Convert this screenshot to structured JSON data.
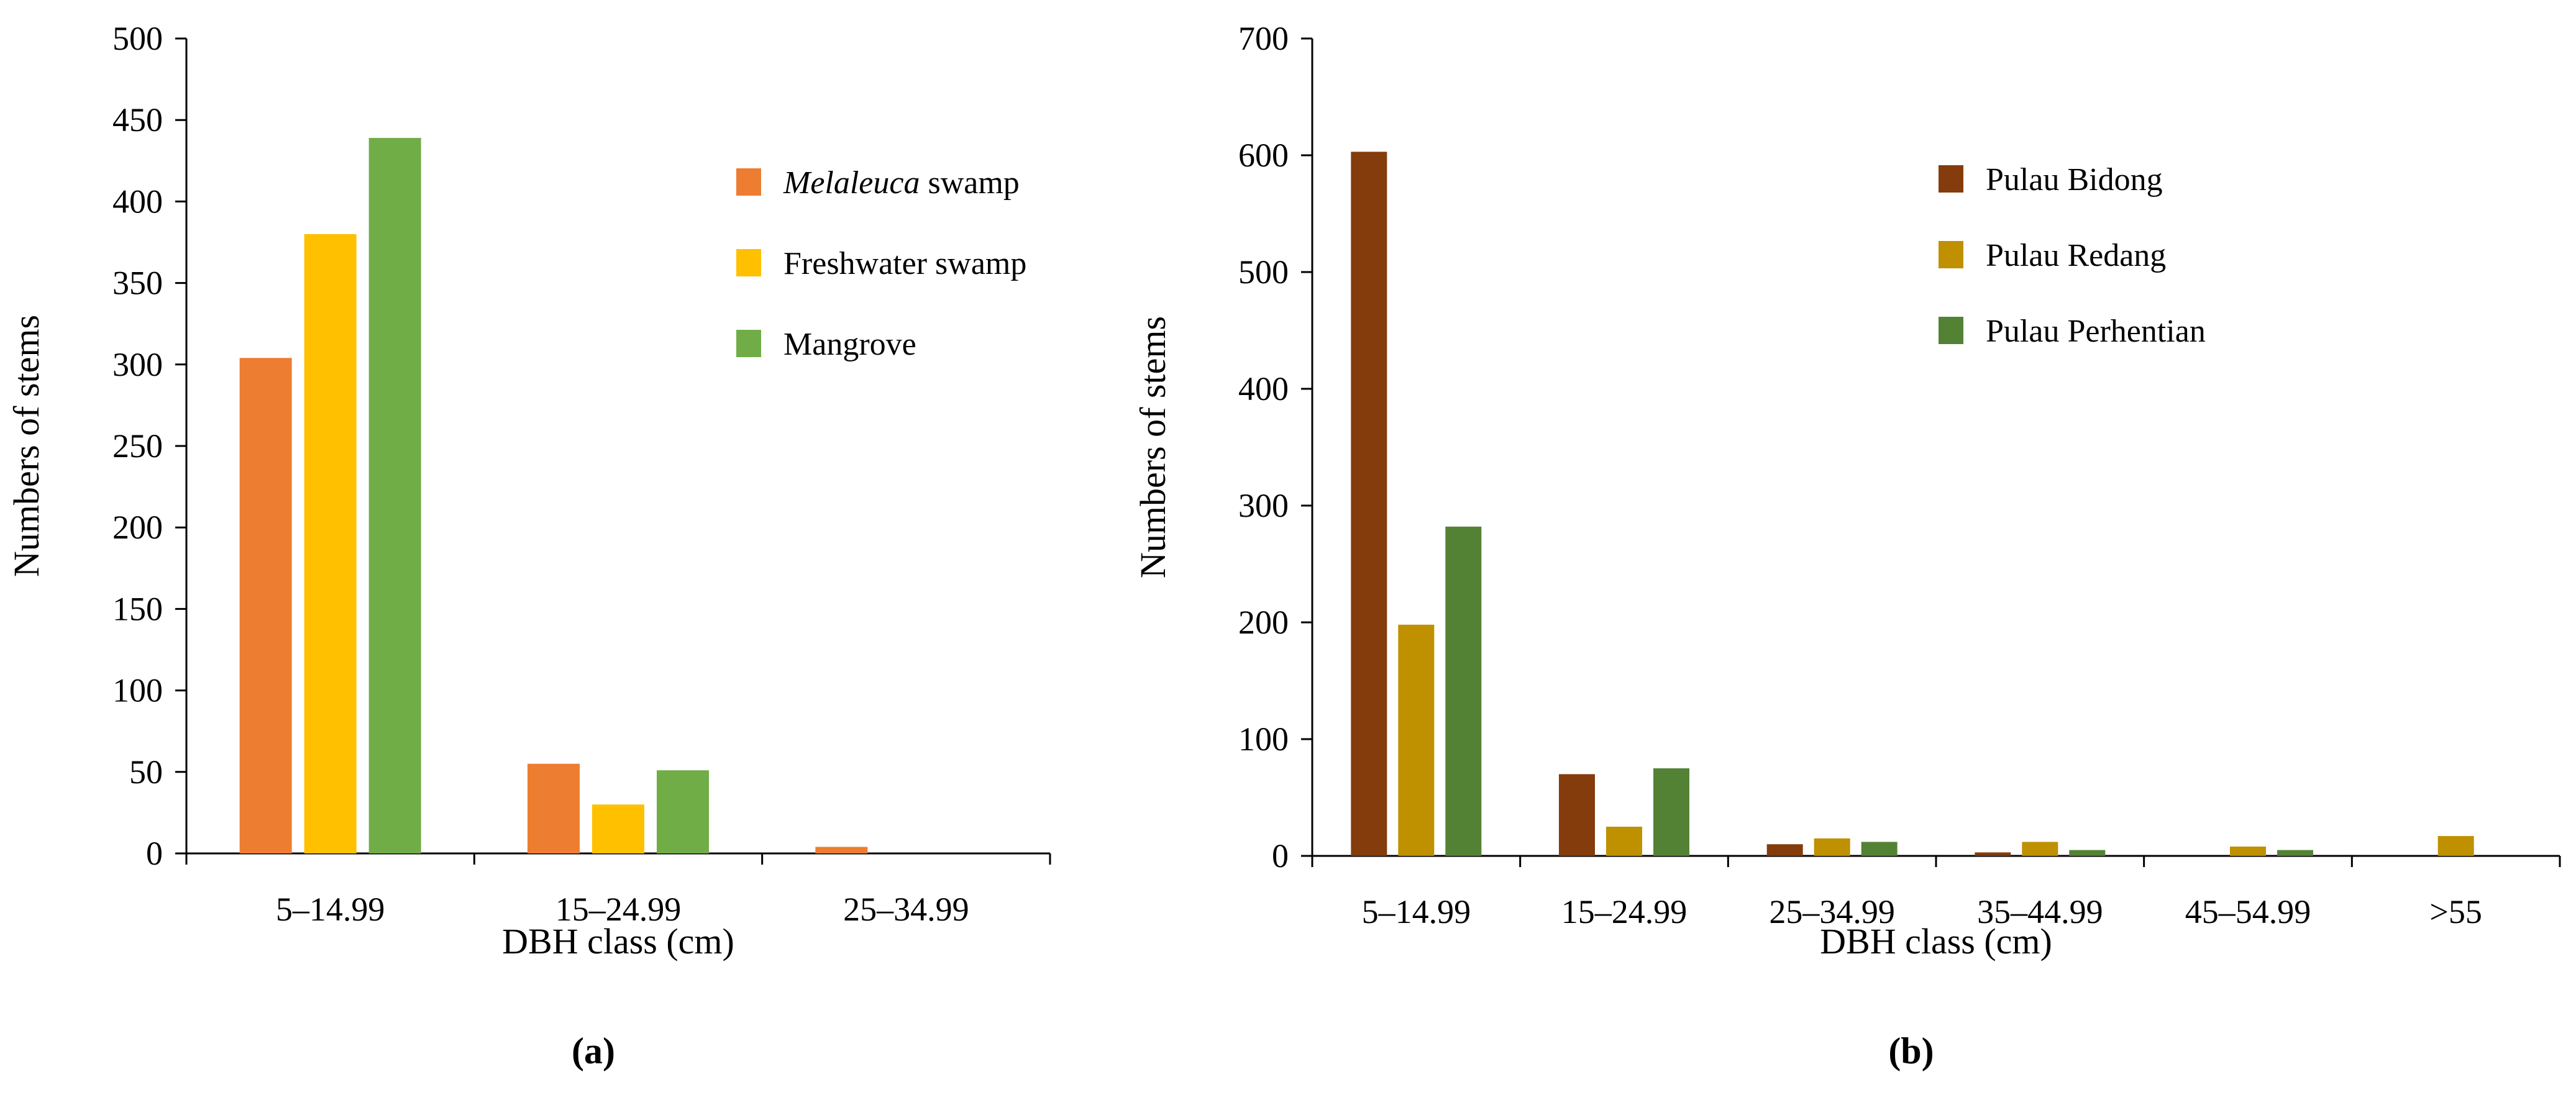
{
  "chart_data": [
    {
      "panel_label": "(a)",
      "type": "bar",
      "categories": [
        "5–14.99",
        "15–24.99",
        "25–34.99"
      ],
      "series": [
        {
          "name": "swamp",
          "name_italic": "Melaleuca",
          "color": "#ED7D31",
          "values": [
            304,
            55,
            4
          ]
        },
        {
          "name": "Freshwater swamp",
          "color": "#FFC000",
          "values": [
            380,
            30,
            0
          ]
        },
        {
          "name": "Mangrove",
          "color": "#70AD47",
          "values": [
            439,
            51,
            0
          ]
        }
      ],
      "xlabel": "DBH class (cm)",
      "ylabel": "Numbers of stems",
      "ylim": [
        0,
        500
      ],
      "yticks": [
        0,
        50,
        100,
        150,
        200,
        250,
        300,
        350,
        400,
        450,
        500
      ],
      "legend_position": "top-right",
      "grid": false
    },
    {
      "panel_label": "(b)",
      "type": "bar",
      "categories": [
        "5–14.99",
        "15–24.99",
        "25–34.99",
        "35–44.99",
        "45–54.99",
        ">55"
      ],
      "series": [
        {
          "name": "Pulau Bidong",
          "color": "#843C0C",
          "values": [
            603,
            70,
            10,
            3,
            0,
            0
          ]
        },
        {
          "name": "Pulau Redang",
          "color": "#BF9000",
          "values": [
            198,
            25,
            15,
            12,
            8,
            17
          ]
        },
        {
          "name": "Pulau Perhentian",
          "color": "#548235",
          "values": [
            282,
            75,
            12,
            5,
            5,
            0
          ]
        }
      ],
      "xlabel": "DBH class (cm)",
      "ylabel": "Numbers of stems",
      "ylim": [
        0,
        700
      ],
      "yticks": [
        0,
        100,
        200,
        300,
        400,
        500,
        600,
        700
      ],
      "legend_position": "top-right",
      "grid": false
    }
  ]
}
